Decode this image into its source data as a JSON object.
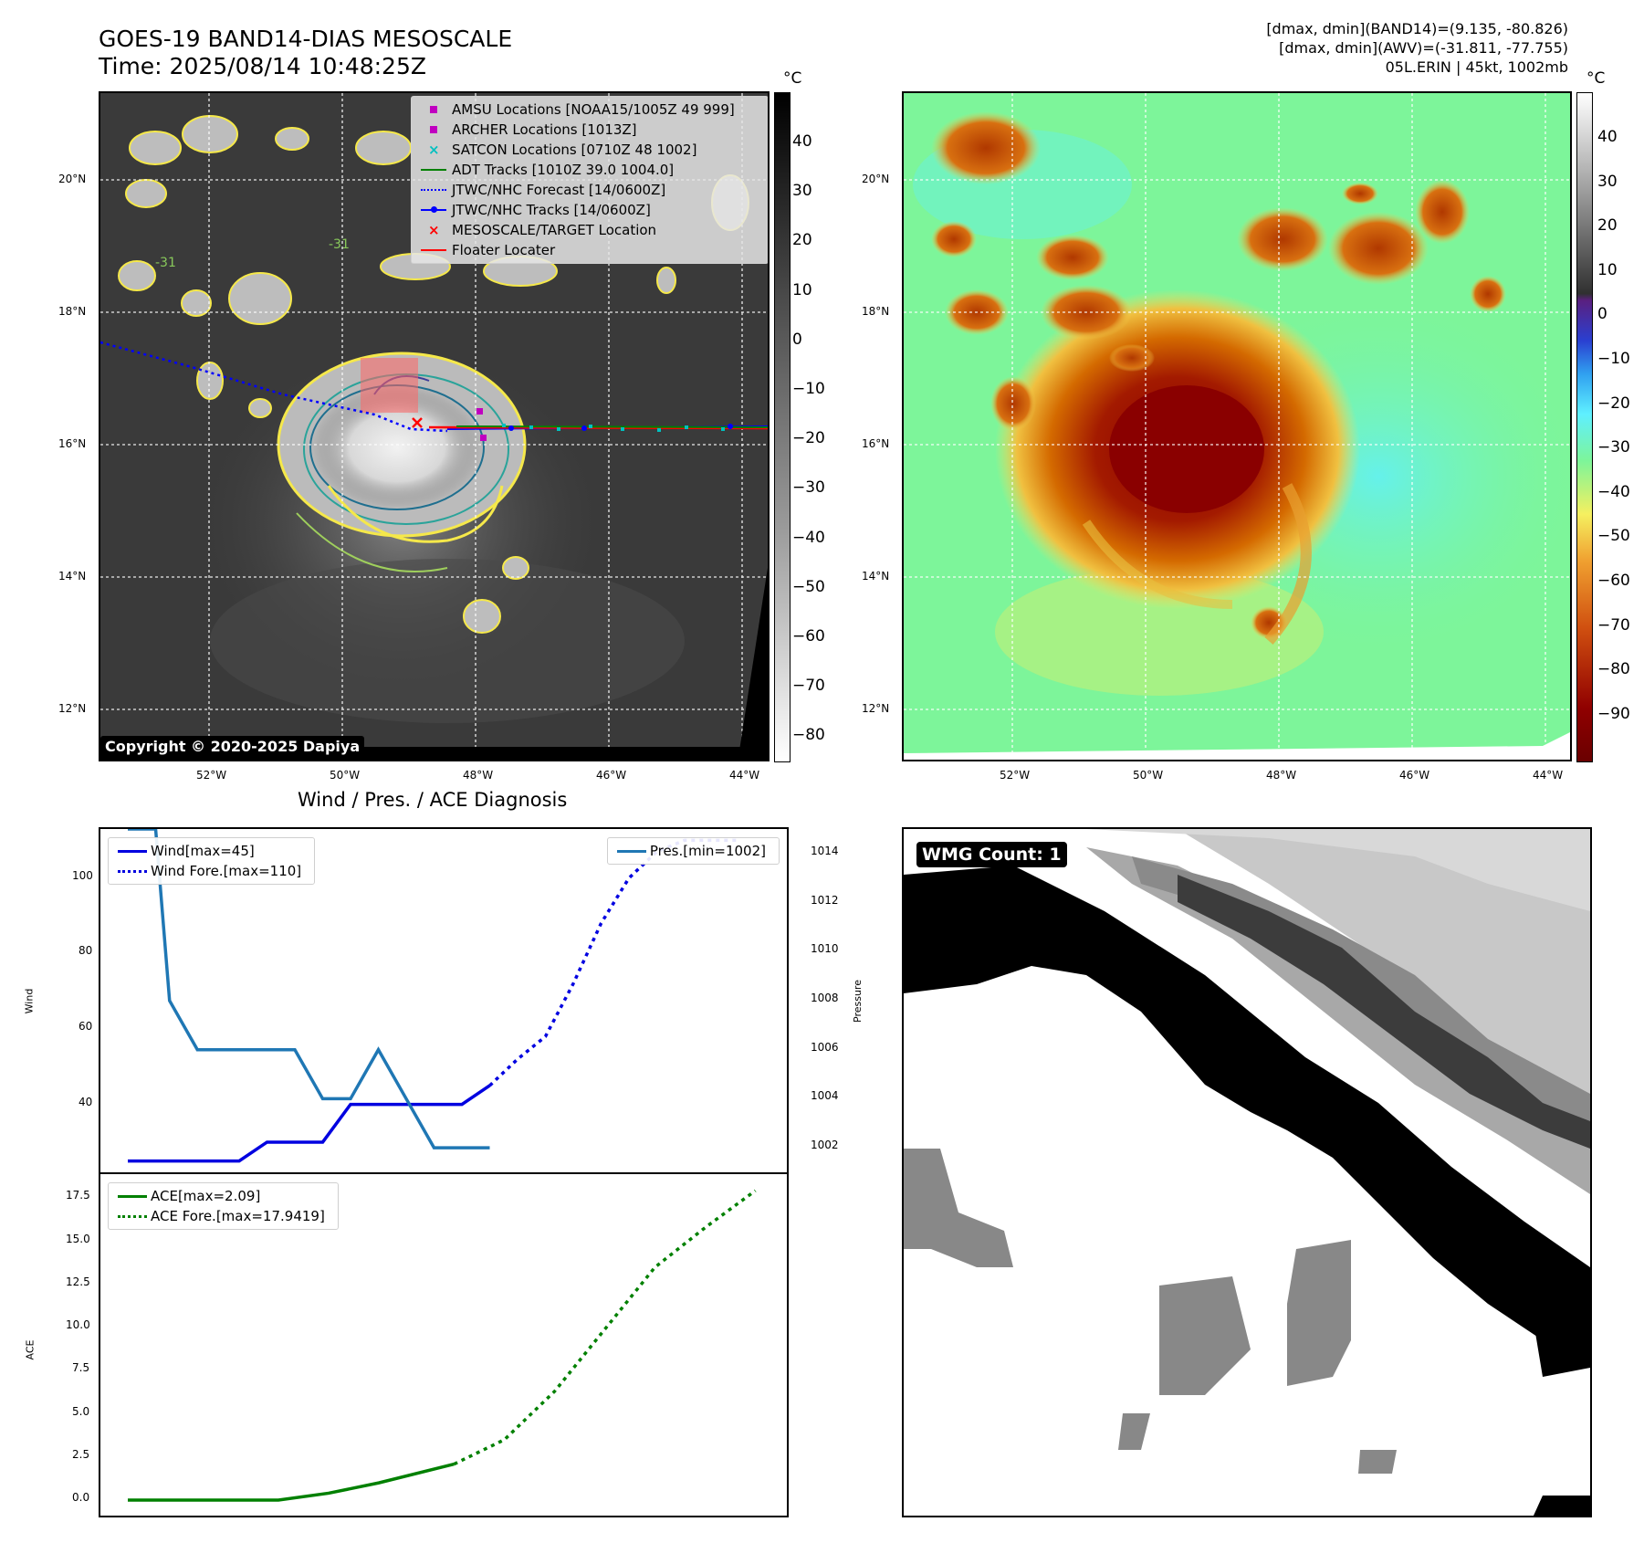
{
  "header": {
    "title_line1": "GOES-19 BAND14-DIAS MESOSCALE",
    "title_line2": "Time: 2025/08/14 10:48:25Z",
    "info_line1": "[dmax, dmin](BAND14)=(9.135, -80.826)",
    "info_line2": "[dmax, dmin](AWV)=(-31.811, -77.755)",
    "info_line3": "05L.ERIN | 45kt, 1002mb"
  },
  "map": {
    "lat_labels": [
      "20°N",
      "18°N",
      "16°N",
      "14°N",
      "12°N"
    ],
    "lon_labels": [
      "52°W",
      "50°W",
      "48°W",
      "46°W",
      "44°W"
    ],
    "copyright": "Copyright © 2020-2025 Dapiya",
    "contour_label": "-31",
    "legend": [
      {
        "label": "AMSU Locations [NOAA15/1005Z 49 999]",
        "icon": "square-marker",
        "color": "#c000c0"
      },
      {
        "label": "ARCHER Locations [1013Z]",
        "icon": "square-marker",
        "color": "#c000c0"
      },
      {
        "label": "SATCON Locations [0710Z 48 1002]",
        "icon": "x-marker",
        "color": "#00c0c0"
      },
      {
        "label": "ADT Tracks [1010Z 39.0 1004.0]",
        "icon": "solid-line",
        "color": "#008000"
      },
      {
        "label": "JTWC/NHC Forecast [14/0600Z]",
        "icon": "dotted-line",
        "color": "#0000ff"
      },
      {
        "label": "JTWC/NHC Tracks [14/0600Z]",
        "icon": "line-dot",
        "color": "#0000ff"
      },
      {
        "label": "MESOSCALE/TARGET Location",
        "icon": "x-marker",
        "color": "#ff0000"
      },
      {
        "label": "Floater Locater",
        "icon": "solid-line",
        "color": "#ff0000"
      }
    ]
  },
  "colorbar_left": {
    "unit": "°C",
    "ticks": [
      "40",
      "30",
      "20",
      "10",
      "0",
      "−10",
      "−20",
      "−30",
      "−40",
      "−50",
      "−60",
      "−70",
      "−80"
    ]
  },
  "colorbar_right": {
    "unit": "°C",
    "ticks": [
      "40",
      "30",
      "20",
      "10",
      "0",
      "−10",
      "−20",
      "−30",
      "−40",
      "−50",
      "−60",
      "−70",
      "−80",
      "−90"
    ]
  },
  "chart_data": [
    {
      "type": "line",
      "title": "Wind / Pres. / ACE Diagnosis",
      "ylabel": "Wind",
      "ylabel_right": "Pressure",
      "ylim": [
        22,
        113
      ],
      "ylim_right": [
        1001,
        1015
      ],
      "yticks": [
        "100",
        "80",
        "60",
        "40"
      ],
      "yticks_right": [
        "1014",
        "1012",
        "1010",
        "1008",
        "1006",
        "1004",
        "1002"
      ],
      "x": [
        0,
        2,
        4,
        6,
        8,
        10,
        12,
        14,
        16,
        18,
        20,
        22,
        24,
        26
      ],
      "series": [
        {
          "name": "Wind[max=45]",
          "axis": "left",
          "style": "solid",
          "color": "#0000e0",
          "x": [
            0,
            1,
            2,
            3,
            4,
            5,
            6,
            7,
            8,
            9,
            10,
            11,
            12,
            13
          ],
          "values": [
            25,
            25,
            25,
            25,
            25,
            30,
            30,
            30,
            40,
            40,
            40,
            40,
            40,
            45
          ]
        },
        {
          "name": "Wind Fore.[max=110]",
          "axis": "left",
          "style": "dotted",
          "color": "#0000e0",
          "x": [
            13,
            14,
            15,
            16,
            17,
            18,
            19,
            20,
            22
          ],
          "values": [
            45,
            52,
            58,
            72,
            88,
            100,
            107,
            110,
            110
          ]
        },
        {
          "name": "Pres.[min=1002]",
          "axis": "right",
          "style": "solid",
          "color": "#1f77b4",
          "x": [
            0,
            1,
            1.5,
            2.5,
            4,
            5,
            6,
            7,
            8,
            9,
            10,
            11,
            12,
            13
          ],
          "values": [
            1015,
            1015,
            1008,
            1006,
            1006,
            1006,
            1006,
            1004,
            1004,
            1006,
            1004,
            1002,
            1002,
            1002
          ]
        }
      ]
    },
    {
      "type": "line",
      "ylabel": "ACE",
      "ylim": [
        -0.9,
        18.9
      ],
      "yticks": [
        "17.5",
        "15.0",
        "12.5",
        "10.0",
        "7.5",
        "5.0",
        "2.5",
        "0.0"
      ],
      "series": [
        {
          "name": "ACE[max=2.09]",
          "style": "solid",
          "color": "#008000",
          "x": [
            0,
            3,
            6,
            8,
            10,
            13
          ],
          "values": [
            0,
            0,
            0,
            0.4,
            1.0,
            2.09
          ]
        },
        {
          "name": "ACE Fore.[max=17.9419]",
          "style": "dotted",
          "color": "#008000",
          "x": [
            13,
            15,
            17,
            19,
            21,
            23,
            25
          ],
          "values": [
            2.09,
            3.5,
            6.3,
            9.9,
            13.5,
            15.8,
            17.9419
          ]
        }
      ]
    }
  ],
  "wmg": {
    "label": "WMG Count: 1"
  }
}
